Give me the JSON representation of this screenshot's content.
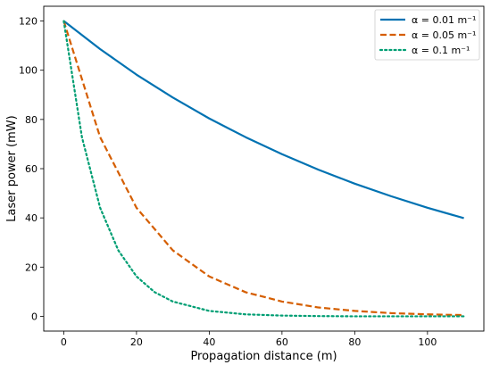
{
  "chart_data": {
    "type": "line",
    "title": "",
    "xlabel": "Propagation distance (m)",
    "ylabel": "Laser power (mW)",
    "xlim": [
      -5.5,
      115.5
    ],
    "ylim": [
      -6,
      126
    ],
    "xticks": [
      0,
      20,
      40,
      60,
      80,
      100
    ],
    "yticks": [
      0,
      20,
      40,
      60,
      80,
      100,
      120
    ],
    "x_tick_labels": [
      "0",
      "20",
      "40",
      "60",
      "80",
      "100"
    ],
    "y_tick_labels": [
      "0",
      "20",
      "40",
      "60",
      "80",
      "100",
      "120"
    ],
    "grid": false,
    "legend_position": "top-right",
    "series": [
      {
        "name": "α = 0.01 m⁻¹",
        "color": "#0072B2",
        "style": "solid",
        "x": [
          0,
          10,
          20,
          30,
          40,
          50,
          60,
          70,
          80,
          90,
          100,
          110
        ],
        "y": [
          120,
          108.6,
          98.2,
          88.9,
          80.4,
          72.8,
          65.9,
          59.6,
          53.9,
          48.8,
          44.1,
          39.9
        ]
      },
      {
        "name": "α = 0.05 m⁻¹",
        "color": "#D55E00",
        "style": "dashed",
        "x": [
          0,
          10,
          20,
          30,
          40,
          50,
          60,
          70,
          80,
          90,
          100,
          110
        ],
        "y": [
          120,
          72.8,
          44.1,
          26.8,
          16.2,
          9.8,
          6.0,
          3.6,
          2.2,
          1.3,
          0.8,
          0.5
        ]
      },
      {
        "name": "α = 0.1 m⁻¹",
        "color": "#009E73",
        "style": "dotted",
        "x": [
          0,
          5,
          10,
          15,
          20,
          25,
          30,
          40,
          50,
          60,
          70,
          80,
          90,
          100,
          110
        ],
        "y": [
          120,
          72.8,
          44.1,
          26.8,
          16.2,
          9.8,
          6.0,
          2.2,
          0.8,
          0.3,
          0.1,
          0.0,
          0.0,
          0.0,
          0.0
        ]
      }
    ]
  }
}
